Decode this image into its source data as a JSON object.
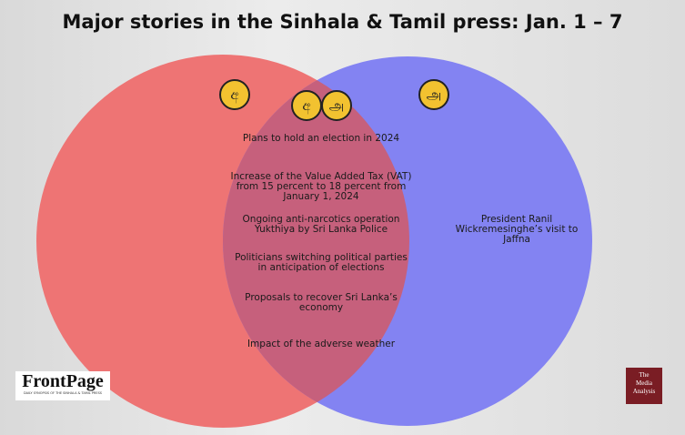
{
  "header": {
    "title": "Major stories in the Sinhala & Tamil press: Jan. 1 – 7"
  },
  "venn": {
    "left": {
      "icon": "අ"
    },
    "right": {
      "icon": "அ",
      "stories": [
        "President Ranil Wickremesinghe’s visit to Jaffna"
      ]
    },
    "overlap": {
      "icons": [
        "අ",
        "அ"
      ],
      "stories": [
        "Plans to hold an election in 2024",
        "Increase of the Value Added Tax (VAT) from 15 percent to 18 percent from January 1, 2024",
        "Ongoing anti-narcotics operation Yukthiya by Sri Lanka Police",
        "Politicians switching political parties in anticipation of elections",
        "Proposals to recover Sri Lanka’s economy",
        "Impact of the adverse weather"
      ]
    }
  },
  "logos": {
    "frontpage": {
      "name": "FrontPage",
      "tagline": "DAILY SYNOPSIS OF THE SINHALA & TAMIL PRESS"
    },
    "media_analysis": [
      "The",
      "Media",
      "Analysis"
    ]
  }
}
